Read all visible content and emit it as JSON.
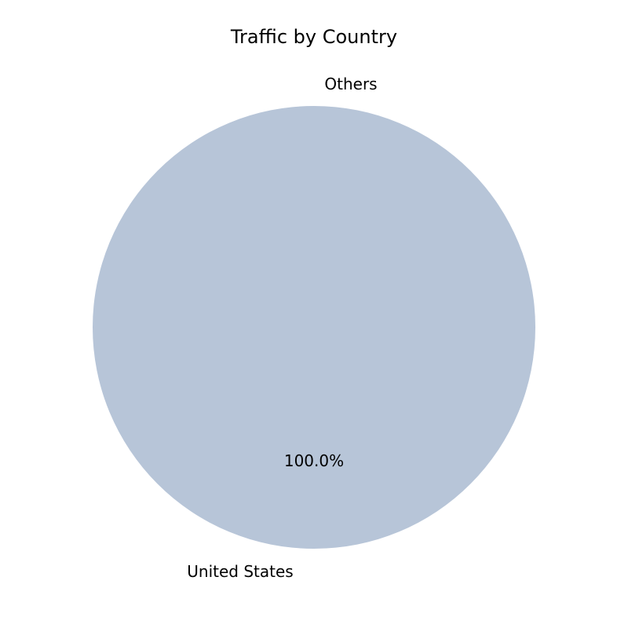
{
  "chart_data": {
    "type": "pie",
    "title": "Traffic by Country",
    "slices": [
      {
        "label": "United States",
        "value": 100.0,
        "percent_label": "100.0%",
        "color": "#b7c5d8"
      },
      {
        "label": "Others",
        "value": 0.0,
        "percent_label": "",
        "color": "#c9d4e3"
      }
    ]
  }
}
